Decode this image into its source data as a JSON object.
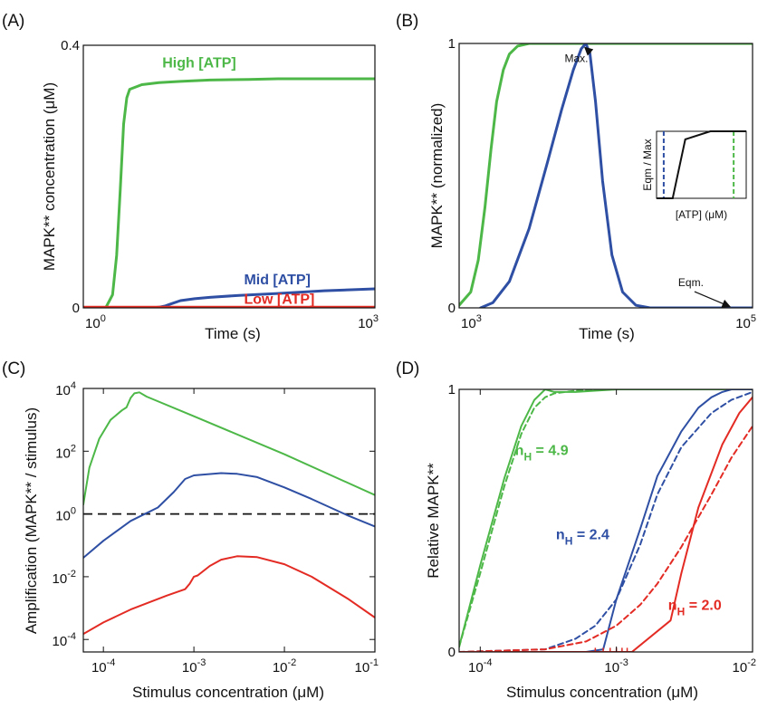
{
  "colors": {
    "green": "#4db848",
    "blue": "#2e4fa3",
    "red": "#e32b24",
    "black": "#111111"
  },
  "chart_data": [
    {
      "panel": "(A)",
      "type": "line",
      "xlabel": "Time (s)",
      "ylabel": "MAPK** concentration (μM)",
      "xscale": "log",
      "xlim": [
        1,
        1000
      ],
      "ylim": [
        0,
        0.4
      ],
      "xticks": [
        {
          "base": "10",
          "exp": "0",
          "v": 1
        },
        {
          "base": "10",
          "exp": "3",
          "v": 1000
        }
      ],
      "yticks": [
        {
          "label": "0",
          "v": 0
        },
        {
          "label": "0.4",
          "v": 0.4
        }
      ],
      "series": [
        {
          "name": "High [ATP]",
          "color": "green",
          "x": [
            1.7,
            2.0,
            2.2,
            2.4,
            2.6,
            2.8,
            3,
            4,
            6,
            10,
            20,
            50,
            100,
            1000
          ],
          "y": [
            0,
            0.02,
            0.08,
            0.18,
            0.28,
            0.32,
            0.333,
            0.34,
            0.343,
            0.345,
            0.347,
            0.348,
            0.349,
            0.349
          ]
        },
        {
          "name": "Mid [ATP]",
          "color": "blue",
          "x": [
            1,
            5,
            6,
            7,
            8,
            10,
            14,
            20,
            40,
            100,
            300,
            1000
          ],
          "y": [
            0,
            0,
            0.001,
            0.003,
            0.006,
            0.011,
            0.014,
            0.016,
            0.019,
            0.022,
            0.026,
            0.029
          ]
        },
        {
          "name": "Low [ATP]",
          "color": "red",
          "x": [
            1,
            1000
          ],
          "y": [
            0.001,
            0.001
          ]
        }
      ],
      "labels": [
        {
          "text": "High [ATP]",
          "color": "green",
          "x": 6.5,
          "y": 0.366
        },
        {
          "text": "Mid [ATP]",
          "color": "blue",
          "x": 45,
          "y": 0.036
        },
        {
          "text": "Low [ATP]",
          "color": "red",
          "x": 45,
          "y": 0.006
        }
      ]
    },
    {
      "panel": "(B)",
      "type": "line",
      "xlabel": "Time (s)",
      "ylabel": "MAPK** (normalized)",
      "xscale": "log",
      "xlim": [
        1000,
        100000
      ],
      "ylim": [
        0,
        1
      ],
      "xticks": [
        {
          "base": "10",
          "exp": "3",
          "v": 1000
        },
        {
          "base": "10",
          "exp": "5",
          "v": 100000
        }
      ],
      "yticks": [
        {
          "label": "0",
          "v": 0
        },
        {
          "label": "1",
          "v": 1
        }
      ],
      "series": [
        {
          "color": "green",
          "x": [
            1000,
            1200,
            1350,
            1500,
            1650,
            1800,
            2000,
            2200,
            2500,
            3000,
            5000,
            100000
          ],
          "y": [
            0.01,
            0.06,
            0.18,
            0.38,
            0.6,
            0.78,
            0.9,
            0.96,
            0.99,
            1,
            1,
            1
          ]
        },
        {
          "color": "blue",
          "x": [
            1400,
            1700,
            2200,
            3000,
            4000,
            5000,
            6000,
            6800,
            7300,
            7800,
            8500,
            9500,
            11000,
            13000,
            16000,
            20000,
            30000,
            100000
          ],
          "y": [
            0,
            0.02,
            0.1,
            0.3,
            0.55,
            0.75,
            0.9,
            0.98,
            1,
            0.96,
            0.78,
            0.48,
            0.2,
            0.06,
            0.01,
            0,
            0,
            0
          ]
        }
      ],
      "annotations": [
        {
          "text": "Max.",
          "tx": 6300,
          "ty": 0.93,
          "ax": 7200,
          "ay": 0.985
        },
        {
          "text": "Eqm.",
          "tx": 38000,
          "ty": 0.082,
          "ax": 70000,
          "ay": 0.005
        }
      ],
      "inset": {
        "xlabel": "[ATP] (μM)",
        "ylabel": "Eqm / Max",
        "line_x": [
          0,
          0.18,
          0.32,
          0.6,
          1
        ],
        "line_y": [
          0,
          0,
          0.88,
          1,
          1
        ],
        "blue_dash_x": 0.08,
        "green_dash_x": 0.86
      }
    },
    {
      "panel": "(C)",
      "type": "line",
      "xlabel": "Stimulus concentration (μM)",
      "ylabel": "Amplification (MAPK** / stimulus)",
      "xscale": "log",
      "yscale": "log",
      "xlim": [
        6e-05,
        0.1
      ],
      "ylim": [
        4e-05,
        10000
      ],
      "xticks": [
        {
          "base": "10",
          "exp": "-4",
          "v": 0.0001
        },
        {
          "base": "10",
          "exp": "-3",
          "v": 0.001
        },
        {
          "base": "10",
          "exp": "-2",
          "v": 0.01
        },
        {
          "base": "10",
          "exp": "-1",
          "v": 0.1
        }
      ],
      "yticks": [
        {
          "base": "10",
          "exp": "-4",
          "v": 0.0001
        },
        {
          "base": "10",
          "exp": "-2",
          "v": 0.01
        },
        {
          "base": "10",
          "exp": "0",
          "v": 1
        },
        {
          "base": "10",
          "exp": "2",
          "v": 100
        },
        {
          "base": "10",
          "exp": "4",
          "v": 10000
        }
      ],
      "series": [
        {
          "color": "green",
          "x": [
            6e-05,
            7e-05,
            9e-05,
            0.00012,
            0.00016,
            0.00018,
            0.0002,
            0.00022,
            0.00025,
            0.0003,
            0.001,
            0.01,
            0.1
          ],
          "y": [
            2,
            30,
            250,
            1000,
            2000,
            2500,
            5000,
            7000,
            7500,
            5500,
            1300,
            80,
            4
          ]
        },
        {
          "color": "blue",
          "x": [
            6e-05,
            0.0001,
            0.0002,
            0.0004,
            0.0006,
            0.0008,
            0.001,
            0.002,
            0.003,
            0.005,
            0.01,
            0.02,
            0.05,
            0.1
          ],
          "y": [
            0.04,
            0.14,
            0.6,
            1.6,
            5,
            13,
            17,
            20,
            19,
            15,
            7,
            3,
            0.9,
            0.4
          ]
        },
        {
          "color": "red",
          "x": [
            6e-05,
            0.0001,
            0.0002,
            0.0005,
            0.0008,
            0.0009,
            0.001,
            0.0011,
            0.0015,
            0.002,
            0.003,
            0.005,
            0.01,
            0.02,
            0.05,
            0.1
          ],
          "y": [
            0.00015,
            0.00035,
            0.0009,
            0.0025,
            0.004,
            0.006,
            0.01,
            0.011,
            0.022,
            0.035,
            0.045,
            0.042,
            0.025,
            0.01,
            0.002,
            0.0005
          ]
        }
      ],
      "reference_line": {
        "y": 1,
        "style": "dashed"
      }
    },
    {
      "panel": "(D)",
      "type": "line",
      "xlabel": "Stimulus concentration (μM)",
      "ylabel": "Relative MAPK**",
      "xscale": "log",
      "xlim": [
        7e-05,
        0.01
      ],
      "ylim": [
        0,
        1
      ],
      "xticks": [
        {
          "base": "10",
          "exp": "-4",
          "v": 0.0001
        },
        {
          "base": "10",
          "exp": "-3",
          "v": 0.001
        },
        {
          "base": "10",
          "exp": "-2",
          "v": 0.01
        }
      ],
      "yticks": [
        {
          "label": "0",
          "v": 0
        },
        {
          "label": "1",
          "v": 1
        }
      ],
      "series": [
        {
          "color": "green",
          "dash": false,
          "x": [
            7e-05,
            0.0001,
            0.00015,
            0.0002,
            0.00025,
            0.0003,
            0.00035,
            0.0005,
            0.001,
            0.01
          ],
          "y": [
            0.02,
            0.33,
            0.66,
            0.86,
            0.96,
            1,
            0.99,
            0.99,
            1,
            1
          ]
        },
        {
          "color": "green",
          "dash": true,
          "x": [
            7e-05,
            0.0001,
            0.00015,
            0.0002,
            0.00025,
            0.0003,
            0.00035,
            0.0005,
            0.001,
            0.01
          ],
          "y": [
            0.02,
            0.3,
            0.63,
            0.83,
            0.93,
            0.97,
            0.985,
            0.995,
            1,
            1
          ]
        },
        {
          "color": "blue",
          "dash": false,
          "x": [
            7e-05,
            0.0006,
            0.0008,
            0.001,
            0.0015,
            0.002,
            0.003,
            0.004,
            0.005,
            0.006,
            0.007,
            0.008,
            0.009,
            0.01
          ],
          "y": [
            0,
            0,
            0.01,
            0.2,
            0.47,
            0.67,
            0.84,
            0.93,
            0.97,
            0.99,
            1,
            1,
            1,
            1
          ]
        },
        {
          "color": "blue",
          "dash": true,
          "x": [
            7e-05,
            0.0003,
            0.0005,
            0.0007,
            0.001,
            0.0015,
            0.002,
            0.003,
            0.005,
            0.007,
            0.01
          ],
          "y": [
            0,
            0.01,
            0.05,
            0.1,
            0.2,
            0.41,
            0.6,
            0.78,
            0.91,
            0.96,
            0.99
          ]
        },
        {
          "color": "red",
          "dash": false,
          "x": [
            7e-05,
            0.001,
            0.0013,
            0.0025,
            0.003,
            0.004,
            0.006,
            0.008,
            0.01
          ],
          "y": [
            0,
            0,
            0,
            0.12,
            0.3,
            0.55,
            0.79,
            0.91,
            0.97
          ]
        },
        {
          "color": "red",
          "dash": true,
          "x": [
            7e-05,
            0.0003,
            0.0006,
            0.001,
            0.0015,
            0.002,
            0.003,
            0.005,
            0.007,
            0.01
          ],
          "y": [
            0,
            0.01,
            0.04,
            0.1,
            0.18,
            0.26,
            0.4,
            0.6,
            0.74,
            0.86
          ]
        }
      ],
      "labels": [
        {
          "base": "n",
          "sub": "H",
          "rest": " = 4.9",
          "color": "green",
          "x": 0.00018,
          "y": 0.75
        },
        {
          "base": "n",
          "sub": "H",
          "rest": " = 2.4",
          "color": "blue",
          "x": 0.00036,
          "y": 0.43
        },
        {
          "base": "n",
          "sub": "H",
          "rest": " = 2.0",
          "color": "red",
          "x": 0.0024,
          "y": 0.16
        }
      ],
      "noise_markers": {
        "color": "red",
        "x": [
          0.0007,
          0.0008,
          0.0009,
          0.001,
          0.0011,
          0.0012
        ],
        "y": 0.002
      }
    }
  ]
}
